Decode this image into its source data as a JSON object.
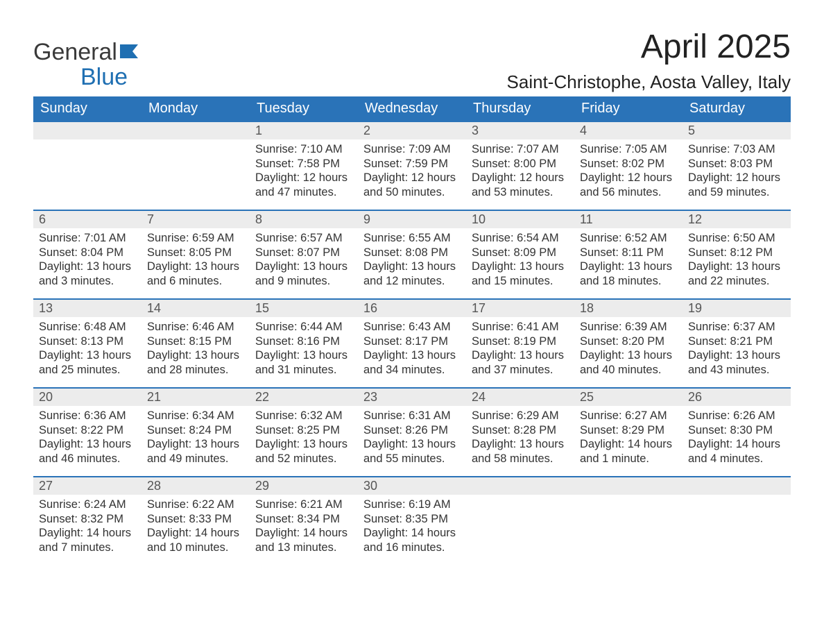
{
  "logo": {
    "word1": "General",
    "word2": "Blue"
  },
  "title": "April 2025",
  "location": "Saint-Christophe, Aosta Valley, Italy",
  "colors": {
    "header_bg": "#2a73b8",
    "header_text": "#ffffff",
    "daynum_bg": "#ececec",
    "border": "#2a73b8",
    "logo_blue": "#1f6fb2",
    "text": "#222222"
  },
  "weekdays": [
    "Sunday",
    "Monday",
    "Tuesday",
    "Wednesday",
    "Thursday",
    "Friday",
    "Saturday"
  ],
  "weeks": [
    [
      null,
      null,
      {
        "n": "1",
        "sr": "Sunrise: 7:10 AM",
        "ss": "Sunset: 7:58 PM",
        "dl": "Daylight: 12 hours and 47 minutes."
      },
      {
        "n": "2",
        "sr": "Sunrise: 7:09 AM",
        "ss": "Sunset: 7:59 PM",
        "dl": "Daylight: 12 hours and 50 minutes."
      },
      {
        "n": "3",
        "sr": "Sunrise: 7:07 AM",
        "ss": "Sunset: 8:00 PM",
        "dl": "Daylight: 12 hours and 53 minutes."
      },
      {
        "n": "4",
        "sr": "Sunrise: 7:05 AM",
        "ss": "Sunset: 8:02 PM",
        "dl": "Daylight: 12 hours and 56 minutes."
      },
      {
        "n": "5",
        "sr": "Sunrise: 7:03 AM",
        "ss": "Sunset: 8:03 PM",
        "dl": "Daylight: 12 hours and 59 minutes."
      }
    ],
    [
      {
        "n": "6",
        "sr": "Sunrise: 7:01 AM",
        "ss": "Sunset: 8:04 PM",
        "dl": "Daylight: 13 hours and 3 minutes."
      },
      {
        "n": "7",
        "sr": "Sunrise: 6:59 AM",
        "ss": "Sunset: 8:05 PM",
        "dl": "Daylight: 13 hours and 6 minutes."
      },
      {
        "n": "8",
        "sr": "Sunrise: 6:57 AM",
        "ss": "Sunset: 8:07 PM",
        "dl": "Daylight: 13 hours and 9 minutes."
      },
      {
        "n": "9",
        "sr": "Sunrise: 6:55 AM",
        "ss": "Sunset: 8:08 PM",
        "dl": "Daylight: 13 hours and 12 minutes."
      },
      {
        "n": "10",
        "sr": "Sunrise: 6:54 AM",
        "ss": "Sunset: 8:09 PM",
        "dl": "Daylight: 13 hours and 15 minutes."
      },
      {
        "n": "11",
        "sr": "Sunrise: 6:52 AM",
        "ss": "Sunset: 8:11 PM",
        "dl": "Daylight: 13 hours and 18 minutes."
      },
      {
        "n": "12",
        "sr": "Sunrise: 6:50 AM",
        "ss": "Sunset: 8:12 PM",
        "dl": "Daylight: 13 hours and 22 minutes."
      }
    ],
    [
      {
        "n": "13",
        "sr": "Sunrise: 6:48 AM",
        "ss": "Sunset: 8:13 PM",
        "dl": "Daylight: 13 hours and 25 minutes."
      },
      {
        "n": "14",
        "sr": "Sunrise: 6:46 AM",
        "ss": "Sunset: 8:15 PM",
        "dl": "Daylight: 13 hours and 28 minutes."
      },
      {
        "n": "15",
        "sr": "Sunrise: 6:44 AM",
        "ss": "Sunset: 8:16 PM",
        "dl": "Daylight: 13 hours and 31 minutes."
      },
      {
        "n": "16",
        "sr": "Sunrise: 6:43 AM",
        "ss": "Sunset: 8:17 PM",
        "dl": "Daylight: 13 hours and 34 minutes."
      },
      {
        "n": "17",
        "sr": "Sunrise: 6:41 AM",
        "ss": "Sunset: 8:19 PM",
        "dl": "Daylight: 13 hours and 37 minutes."
      },
      {
        "n": "18",
        "sr": "Sunrise: 6:39 AM",
        "ss": "Sunset: 8:20 PM",
        "dl": "Daylight: 13 hours and 40 minutes."
      },
      {
        "n": "19",
        "sr": "Sunrise: 6:37 AM",
        "ss": "Sunset: 8:21 PM",
        "dl": "Daylight: 13 hours and 43 minutes."
      }
    ],
    [
      {
        "n": "20",
        "sr": "Sunrise: 6:36 AM",
        "ss": "Sunset: 8:22 PM",
        "dl": "Daylight: 13 hours and 46 minutes."
      },
      {
        "n": "21",
        "sr": "Sunrise: 6:34 AM",
        "ss": "Sunset: 8:24 PM",
        "dl": "Daylight: 13 hours and 49 minutes."
      },
      {
        "n": "22",
        "sr": "Sunrise: 6:32 AM",
        "ss": "Sunset: 8:25 PM",
        "dl": "Daylight: 13 hours and 52 minutes."
      },
      {
        "n": "23",
        "sr": "Sunrise: 6:31 AM",
        "ss": "Sunset: 8:26 PM",
        "dl": "Daylight: 13 hours and 55 minutes."
      },
      {
        "n": "24",
        "sr": "Sunrise: 6:29 AM",
        "ss": "Sunset: 8:28 PM",
        "dl": "Daylight: 13 hours and 58 minutes."
      },
      {
        "n": "25",
        "sr": "Sunrise: 6:27 AM",
        "ss": "Sunset: 8:29 PM",
        "dl": "Daylight: 14 hours and 1 minute."
      },
      {
        "n": "26",
        "sr": "Sunrise: 6:26 AM",
        "ss": "Sunset: 8:30 PM",
        "dl": "Daylight: 14 hours and 4 minutes."
      }
    ],
    [
      {
        "n": "27",
        "sr": "Sunrise: 6:24 AM",
        "ss": "Sunset: 8:32 PM",
        "dl": "Daylight: 14 hours and 7 minutes."
      },
      {
        "n": "28",
        "sr": "Sunrise: 6:22 AM",
        "ss": "Sunset: 8:33 PM",
        "dl": "Daylight: 14 hours and 10 minutes."
      },
      {
        "n": "29",
        "sr": "Sunrise: 6:21 AM",
        "ss": "Sunset: 8:34 PM",
        "dl": "Daylight: 14 hours and 13 minutes."
      },
      {
        "n": "30",
        "sr": "Sunrise: 6:19 AM",
        "ss": "Sunset: 8:35 PM",
        "dl": "Daylight: 14 hours and 16 minutes."
      },
      null,
      null,
      null
    ]
  ]
}
